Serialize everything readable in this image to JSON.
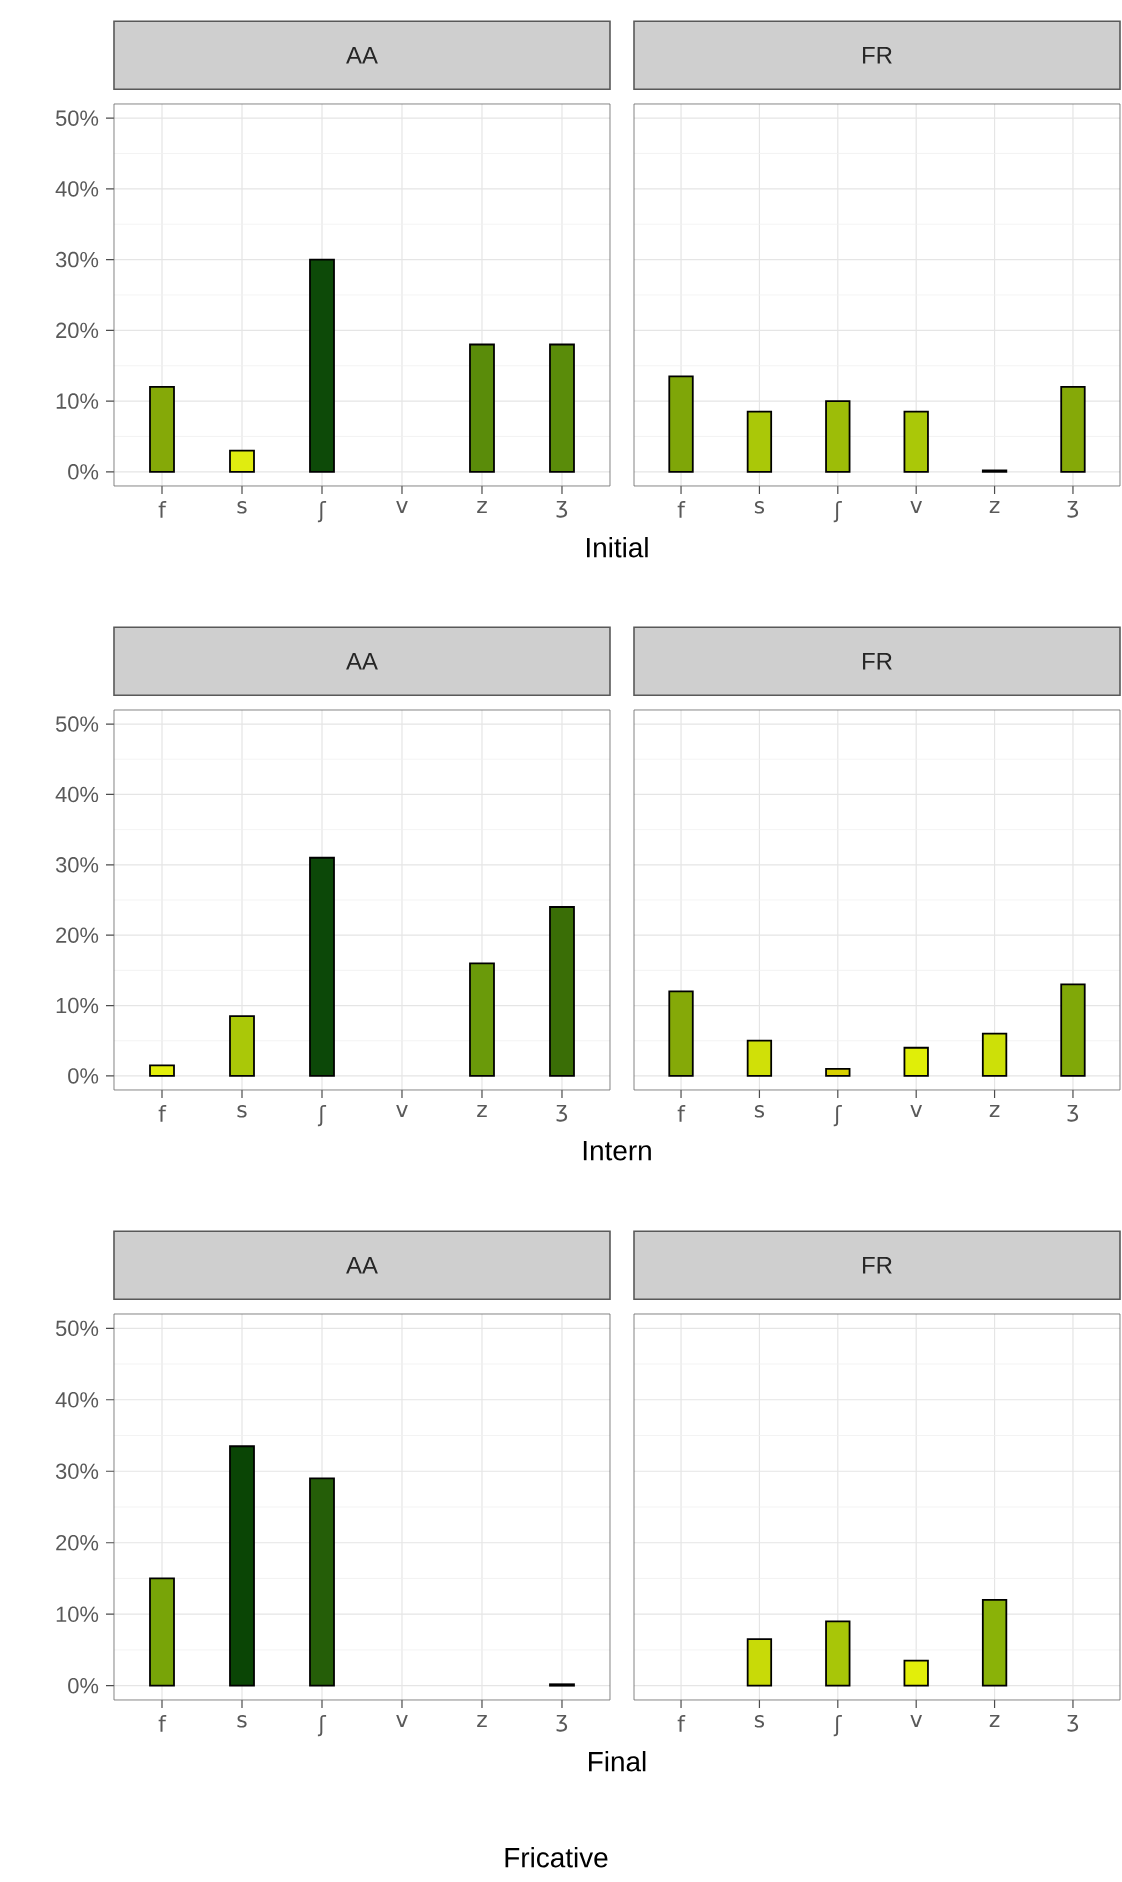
{
  "chart_data": [
    {
      "type": "bar",
      "title": "AA",
      "xlabel": "Initial",
      "categories": [
        "f",
        "s",
        "ʃ",
        "v",
        "z",
        "ʒ"
      ],
      "values": [
        12,
        3,
        30,
        null,
        18,
        18
      ],
      "colors": [
        "#85a908",
        "#e0ec10",
        "#0d4a08",
        null,
        "#5a8c0a",
        "#5a8c0a"
      ],
      "ylim": [
        -2,
        52
      ],
      "yticks": [
        {
          "value": 0,
          "label": "0%"
        },
        {
          "value": 10,
          "label": "10%"
        },
        {
          "value": 20,
          "label": "20%"
        },
        {
          "value": 30,
          "label": "30%"
        },
        {
          "value": 40,
          "label": "40%"
        },
        {
          "value": 50,
          "label": "50%"
        }
      ],
      "grid": true
    },
    {
      "type": "bar",
      "title": "FR",
      "categories": [
        "f",
        "s",
        "ʃ",
        "v",
        "z",
        "ʒ"
      ],
      "values": [
        13.5,
        8.5,
        10,
        8.5,
        0.2,
        12
      ],
      "colors": [
        "#7fa608",
        "#aac808",
        "#9dbd08",
        "#aac808",
        "#e8f000",
        "#85a908"
      ],
      "ylim": [
        -2,
        52
      ],
      "yticks": [
        {
          "value": 0,
          "label": null
        },
        {
          "value": 10,
          "label": null
        },
        {
          "value": 20,
          "label": null
        },
        {
          "value": 30,
          "label": null
        },
        {
          "value": 40,
          "label": null
        },
        {
          "value": 50,
          "label": null
        }
      ],
      "grid": true,
      "tick_labels": "x"
    },
    {
      "type": "bar",
      "title": "AA",
      "xlabel": "Intern",
      "categories": [
        "f",
        "s",
        "ʃ",
        "v",
        "z",
        "ʒ"
      ],
      "values": [
        1.5,
        8.5,
        31,
        null,
        16,
        24
      ],
      "colors": [
        "#e3ee0a",
        "#aac808",
        "#0c4808",
        null,
        "#6a9a0a",
        "#3a6e06"
      ],
      "ylim": [
        -2,
        52
      ],
      "yticks": [
        {
          "value": 0,
          "label": "0%"
        },
        {
          "value": 10,
          "label": "10%"
        },
        {
          "value": 20,
          "label": "20%"
        },
        {
          "value": 30,
          "label": "30%"
        },
        {
          "value": 40,
          "label": "40%"
        },
        {
          "value": 50,
          "label": "50%"
        }
      ],
      "grid": true
    },
    {
      "type": "bar",
      "title": "FR",
      "categories": [
        "f",
        "s",
        "ʃ",
        "v",
        "z",
        "ʒ"
      ],
      "values": [
        12,
        5,
        1,
        4,
        6,
        13
      ],
      "colors": [
        "#85a908",
        "#d0e008",
        "#d8d000",
        "#e0ee08",
        "#cde008",
        "#80a808"
      ],
      "ylim": [
        -2,
        52
      ],
      "yticks": [
        {
          "value": 0,
          "label": null
        },
        {
          "value": 10,
          "label": null
        },
        {
          "value": 20,
          "label": null
        },
        {
          "value": 30,
          "label": null
        },
        {
          "value": 40,
          "label": null
        },
        {
          "value": 50,
          "label": null
        }
      ],
      "grid": true,
      "tick_labels": "x"
    },
    {
      "type": "bar",
      "title": "AA",
      "xlabel": "Final",
      "annotations": [
        "Fricative"
      ],
      "categories": [
        "f",
        "s",
        "ʃ",
        "v",
        "z",
        "ʒ"
      ],
      "values": [
        15,
        33.5,
        29,
        null,
        null,
        0.2
      ],
      "colors": [
        "#78a408",
        "#0a4505",
        "#255e08",
        null,
        null,
        "#e8f000"
      ],
      "ylim": [
        -2,
        52
      ],
      "yticks": [
        {
          "value": 0,
          "label": "0%"
        },
        {
          "value": 10,
          "label": "10%"
        },
        {
          "value": 20,
          "label": "20%"
        },
        {
          "value": 30,
          "label": "30%"
        },
        {
          "value": 40,
          "label": "40%"
        },
        {
          "value": 50,
          "label": "50%"
        }
      ],
      "grid": true
    },
    {
      "type": "bar",
      "title": "FR",
      "categories": [
        "f",
        "s",
        "ʃ",
        "v",
        "z",
        "ʒ"
      ],
      "values": [
        null,
        6.5,
        9,
        3.5,
        12,
        null
      ],
      "colors": [
        null,
        "#c8da08",
        "#a8c608",
        "#e2ee0a",
        "#8ab208",
        null
      ],
      "ylim": [
        -2,
        52
      ],
      "yticks": [
        {
          "value": 0,
          "label": null
        },
        {
          "value": 10,
          "label": null
        },
        {
          "value": 20,
          "label": null
        },
        {
          "value": 30,
          "label": null
        },
        {
          "value": 40,
          "label": null
        },
        {
          "value": 50,
          "label": null
        }
      ],
      "grid": true,
      "tick_labels": "x"
    }
  ]
}
